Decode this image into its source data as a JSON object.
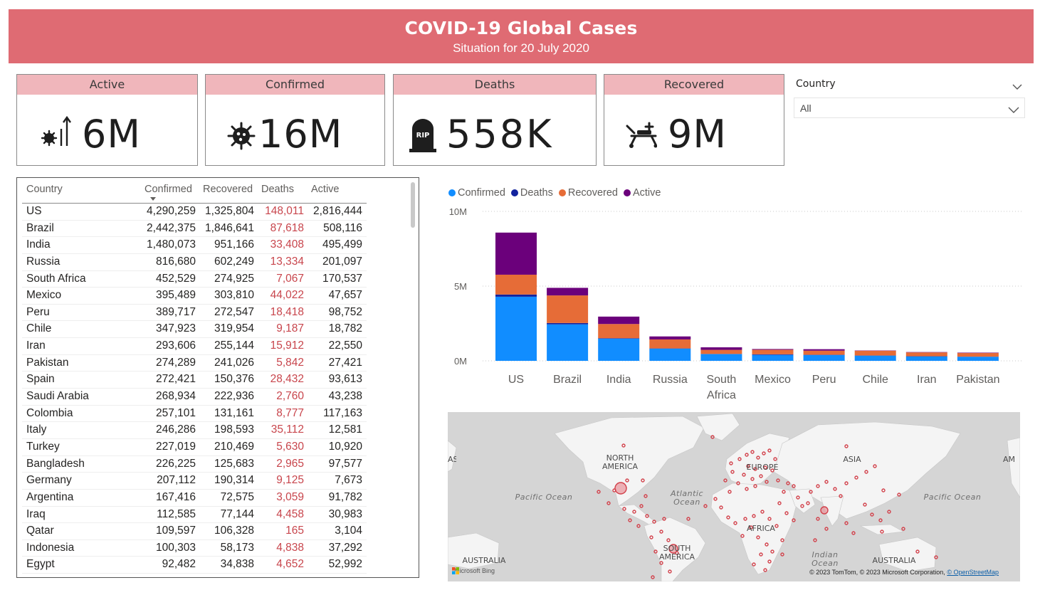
{
  "header": {
    "title": "COVID-19 Global Cases",
    "subtitle": "Situation for 20 July 2020"
  },
  "cards": [
    {
      "label": "Active",
      "value": "6M",
      "icon": "virus-rising-icon"
    },
    {
      "label": "Confirmed",
      "value": "16M",
      "icon": "virus-icon"
    },
    {
      "label": "Deaths",
      "value": "558K",
      "icon": "tombstone-icon"
    },
    {
      "label": "Recovered",
      "value": "9M",
      "icon": "stretcher-icon"
    }
  ],
  "slicer": {
    "label": "Country",
    "value": "All"
  },
  "table": {
    "columns": [
      "Country",
      "Confirmed",
      "Recovered",
      "Deaths",
      "Active"
    ],
    "sorted_column": "Confirmed",
    "rows": [
      [
        "US",
        "4,290,259",
        "1,325,804",
        "148,011",
        "2,816,444"
      ],
      [
        "Brazil",
        "2,442,375",
        "1,846,641",
        "87,618",
        "508,116"
      ],
      [
        "India",
        "1,480,073",
        "951,166",
        "33,408",
        "495,499"
      ],
      [
        "Russia",
        "816,680",
        "602,249",
        "13,334",
        "201,097"
      ],
      [
        "South Africa",
        "452,529",
        "274,925",
        "7,067",
        "170,537"
      ],
      [
        "Mexico",
        "395,489",
        "303,810",
        "44,022",
        "47,657"
      ],
      [
        "Peru",
        "389,717",
        "272,547",
        "18,418",
        "98,752"
      ],
      [
        "Chile",
        "347,923",
        "319,954",
        "9,187",
        "18,782"
      ],
      [
        "Iran",
        "293,606",
        "255,144",
        "15,912",
        "22,550"
      ],
      [
        "Pakistan",
        "274,289",
        "241,026",
        "5,842",
        "27,421"
      ],
      [
        "Spain",
        "272,421",
        "150,376",
        "28,432",
        "93,613"
      ],
      [
        "Saudi Arabia",
        "268,934",
        "222,936",
        "2,760",
        "43,238"
      ],
      [
        "Colombia",
        "257,101",
        "131,161",
        "8,777",
        "117,163"
      ],
      [
        "Italy",
        "246,286",
        "198,593",
        "35,112",
        "12,581"
      ],
      [
        "Turkey",
        "227,019",
        "210,469",
        "5,630",
        "10,920"
      ],
      [
        "Bangladesh",
        "226,225",
        "125,683",
        "2,965",
        "97,577"
      ],
      [
        "Germany",
        "207,112",
        "190,314",
        "9,125",
        "7,673"
      ],
      [
        "Argentina",
        "167,416",
        "72,575",
        "3,059",
        "91,782"
      ],
      [
        "Iraq",
        "112,585",
        "77,144",
        "4,458",
        "30,983"
      ],
      [
        "Qatar",
        "109,597",
        "106,328",
        "165",
        "3,104"
      ],
      [
        "Indonesia",
        "100,303",
        "58,173",
        "4,838",
        "37,292"
      ],
      [
        "Egypt",
        "92,482",
        "34,838",
        "4,652",
        "52,992"
      ]
    ]
  },
  "colors": {
    "banner": "#df6b73",
    "card_header": "#f0b6bb",
    "confirmed": "#118dff",
    "deaths": "#12239e",
    "recovered": "#e66c37",
    "active": "#6b007b",
    "deaths_text": "#c8454c",
    "map_dot": "#d2404a"
  },
  "chart_data": {
    "type": "bar",
    "stacked": true,
    "categories": [
      "US",
      "Brazil",
      "India",
      "Russia",
      "South Africa",
      "Mexico",
      "Peru",
      "Chile",
      "Iran",
      "Pakistan"
    ],
    "series": [
      {
        "name": "Confirmed",
        "values": [
          4290259,
          2442375,
          1480073,
          816680,
          452529,
          395489,
          389717,
          347923,
          293606,
          274289
        ]
      },
      {
        "name": "Deaths",
        "values": [
          148011,
          87618,
          33408,
          13334,
          7067,
          44022,
          18418,
          9187,
          15912,
          5842
        ]
      },
      {
        "name": "Recovered",
        "values": [
          1325804,
          1846641,
          951166,
          602249,
          274925,
          303810,
          272547,
          319954,
          255144,
          241026
        ]
      },
      {
        "name": "Active",
        "values": [
          2816444,
          508116,
          495499,
          201097,
          170537,
          47657,
          98752,
          18782,
          22550,
          27421
        ]
      }
    ],
    "y_ticks": [
      "0M",
      "5M",
      "10M"
    ],
    "ylim": [
      0,
      10000000
    ],
    "legend_position": "top-left",
    "grid": true
  },
  "map": {
    "labels": {
      "north_america": "NORTH AMERICA",
      "south_america": "SOUTH AMERICA",
      "europe": "EUROPE",
      "africa": "AFRICA",
      "asia": "ASIA",
      "australia_left": "AUSTRALIA",
      "australia_right": "AUSTRALIA",
      "asia_edge": "AS",
      "america_edge": "AM",
      "pacific_left": "Pacific Ocean",
      "pacific_right": "Pacific Ocean",
      "atlantic": "Atlantic Ocean",
      "indian": "Indian Ocean"
    },
    "bing_label": "Microsoft Bing",
    "copyright": "© 2023 TomTom, © 2023 Microsoft Corporation,",
    "osm_link": "© OpenStreetMap"
  }
}
